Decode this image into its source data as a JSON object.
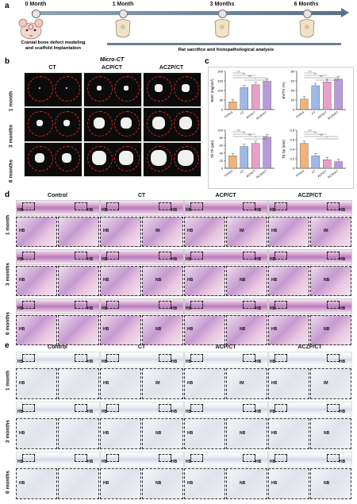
{
  "panels": {
    "a": "a",
    "b": "b",
    "c": "c",
    "d": "d",
    "e": "e"
  },
  "timeline": {
    "points": [
      "0 Month",
      "1 Month",
      "3 Months",
      "6 Months"
    ],
    "left_caption_1": "Cranial bone defect modeling",
    "left_caption_2": "and scaffold Implantation",
    "bar_caption": "Rat sacrifice and histopathological analysis"
  },
  "microct": {
    "title": "Micro-CT",
    "columns": [
      "CT",
      "ACP/CT",
      "ACZP/CT"
    ],
    "rows": [
      "1 month",
      "3 months",
      "6 months"
    ]
  },
  "histology": {
    "columns": [
      "Control",
      "CT",
      "ACP/CT",
      "ACZP/CT"
    ],
    "rows": [
      "1 month",
      "3 months",
      "6 months"
    ]
  },
  "labels": {
    "hb": "HB",
    "im": "IM",
    "nb": "NB"
  },
  "chart_data": [
    {
      "type": "bar",
      "ylabel": "BMD (mg/cm³)",
      "categories": [
        "Control",
        "CT",
        "ACP/CT",
        "ACZP/CT"
      ],
      "values": [
        40,
        115,
        130,
        148
      ],
      "ylim": [
        0,
        200
      ],
      "yticks": [
        0,
        50,
        100,
        150,
        200
      ],
      "colors": [
        "#f2b27a",
        "#9fb8e8",
        "#e9a0c8",
        "#b89ad8"
      ]
    },
    {
      "type": "bar",
      "ylabel": "BV/TV (%)",
      "categories": [
        "Control",
        "CT",
        "ACP/CT",
        "ACZP/CT"
      ],
      "values": [
        22,
        50,
        58,
        64
      ],
      "ylim": [
        0,
        80
      ],
      "yticks": [
        0,
        20,
        40,
        60,
        80
      ],
      "colors": [
        "#f2b27a",
        "#9fb8e8",
        "#e9a0c8",
        "#b89ad8"
      ]
    },
    {
      "type": "bar",
      "ylabel": "Tb.Th (µm)",
      "categories": [
        "Control",
        "CT",
        "ACP/CT",
        "ACZP/CT"
      ],
      "values": [
        33,
        57,
        65,
        82
      ],
      "ylim": [
        0,
        100
      ],
      "yticks": [
        0,
        20,
        40,
        60,
        80,
        100
      ],
      "colors": [
        "#f2b27a",
        "#9fb8e8",
        "#e9a0c8",
        "#b89ad8"
      ]
    },
    {
      "type": "bar",
      "ylabel": "Tb.Sp (mm)",
      "categories": [
        "Control",
        "CT",
        "ACP/CT",
        "ACZP/CT"
      ],
      "values": [
        0.52,
        0.26,
        0.18,
        0.14
      ],
      "ylim": [
        0,
        0.8
      ],
      "yticks": [
        0,
        0.2,
        0.4,
        0.6,
        0.8
      ],
      "colors": [
        "#f2b27a",
        "#9fb8e8",
        "#e9a0c8",
        "#b89ad8"
      ]
    }
  ],
  "significance": [
    "****",
    "***",
    "**",
    "*"
  ]
}
